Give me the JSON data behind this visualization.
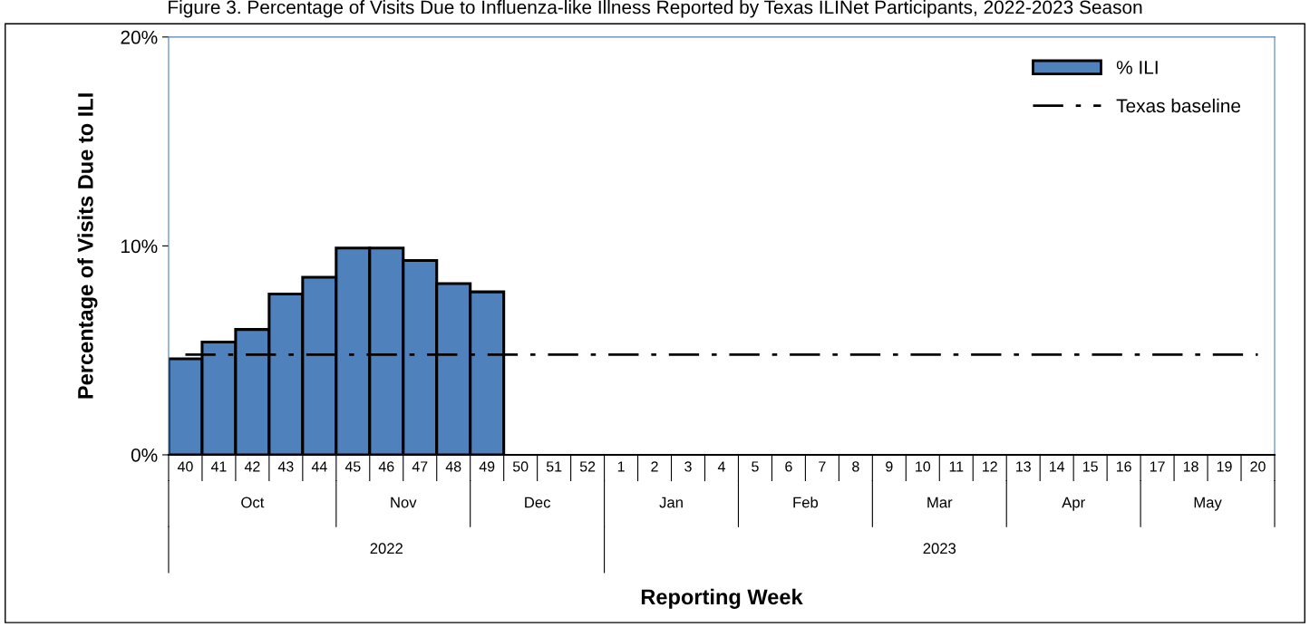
{
  "chart_data": {
    "type": "bar",
    "title": "Figure 3. Percentage of Visits Due to Influenza-like Illness Reported by Texas ILINet Participants, 2022-2023 Season",
    "ylabel": "Percentage of Visits Due to ILI",
    "categories": [
      "40",
      "41",
      "42",
      "43",
      "44",
      "45",
      "46",
      "47",
      "48",
      "49",
      "50",
      "51",
      "52",
      "1",
      "2",
      "3",
      "4",
      "5",
      "6",
      "7",
      "8",
      "9",
      "10",
      "11",
      "12",
      "13",
      "14",
      "15",
      "16",
      "17",
      "18",
      "19",
      "20"
    ],
    "series": [
      {
        "name": "% ILI",
        "color": "#4f81bd",
        "values": [
          4.6,
          5.4,
          6.0,
          7.7,
          8.5,
          9.9,
          9.9,
          9.3,
          8.2,
          7.8,
          null,
          null,
          null,
          null,
          null,
          null,
          null,
          null,
          null,
          null,
          null,
          null,
          null,
          null,
          null,
          null,
          null,
          null,
          null,
          null,
          null,
          null,
          null
        ]
      }
    ],
    "ref_lines": [
      {
        "axis": "y",
        "value": 4.8,
        "label": "Texas baseline",
        "color": "#000000",
        "line_style": "dashdot"
      }
    ],
    "annotations": [
      "Oct",
      "Nov",
      "Dec",
      "Jan",
      "Feb",
      "Mar",
      "Apr",
      "May",
      "2022",
      "2023",
      "Reporting Week"
    ],
    "ylim": [
      0,
      20
    ],
    "yticks": [
      {
        "value": 0,
        "label": "0%"
      },
      {
        "value": 10,
        "label": "10%"
      },
      {
        "value": 20,
        "label": "20%"
      }
    ],
    "grid": false,
    "legend": "top right"
  }
}
